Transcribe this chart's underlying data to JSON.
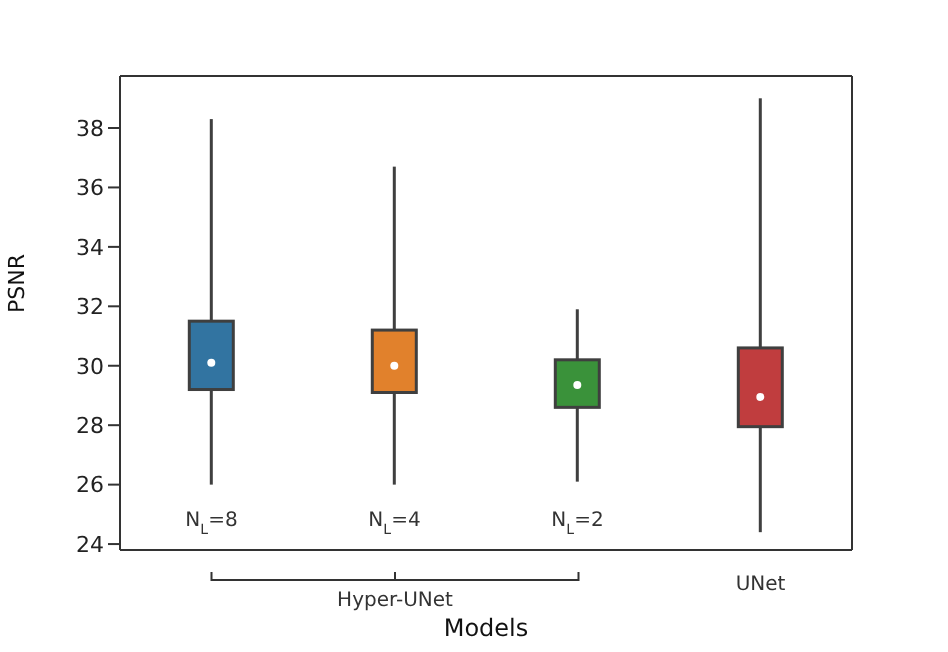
{
  "chart_data": {
    "type": "box",
    "xlabel": "Models",
    "ylabel": "PSNR",
    "categories": [
      "N$_{L}$=8",
      "N$_{L}$=4",
      "N$_{L}$=2",
      "UNet"
    ],
    "colors": [
      "#3274a1",
      "#e1812c",
      "#3a923a",
      "#c03d3e"
    ],
    "boxes": [
      {
        "low": 26.0,
        "q1": 29.2,
        "median": 30.1,
        "q3": 31.5,
        "high": 38.3
      },
      {
        "low": 26.0,
        "q1": 29.1,
        "median": 30.0,
        "q3": 31.2,
        "high": 36.7
      },
      {
        "low": 26.1,
        "q1": 28.6,
        "median": 29.35,
        "q3": 30.2,
        "high": 31.9
      },
      {
        "low": 24.4,
        "q1": 27.95,
        "median": 28.95,
        "q3": 30.6,
        "high": 39.0
      }
    ],
    "annotations": [
      "Hyper-UNet"
    ],
    "ylim": [
      23.8,
      39.75
    ],
    "yticks": [
      24,
      26,
      28,
      30,
      32,
      34,
      36,
      38
    ]
  }
}
